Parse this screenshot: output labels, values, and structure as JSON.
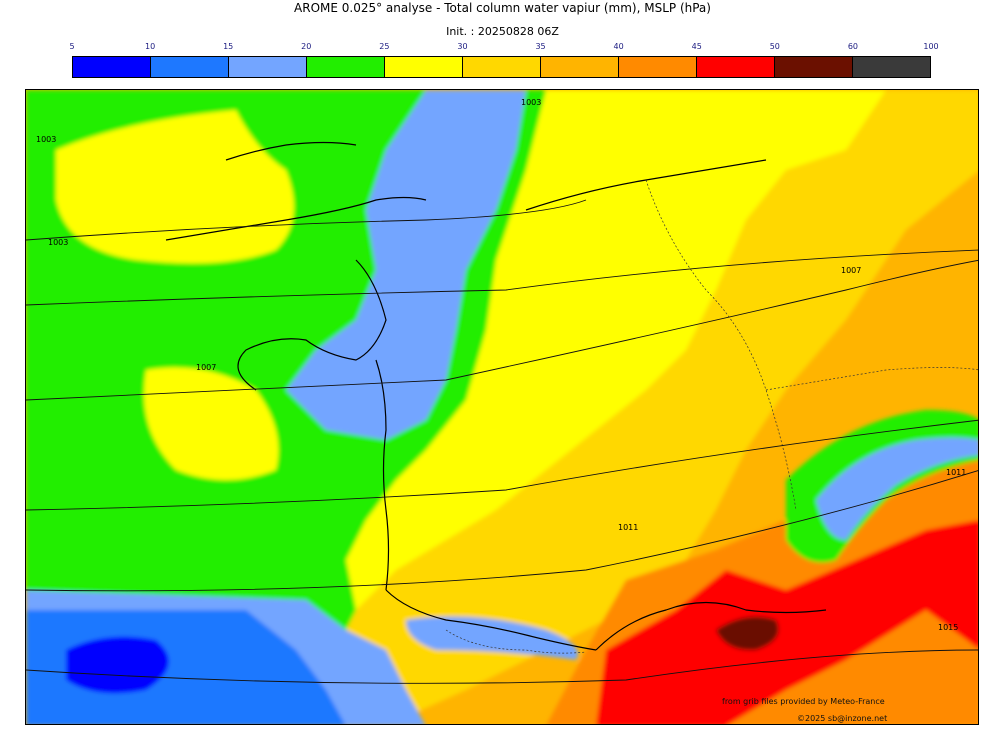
{
  "header": {
    "title": "AROME 0.025° analyse - Total column water vapiur (mm), MSLP (hPa)",
    "init": "Init. : 20250828 06Z"
  },
  "colorbar": {
    "ticks": [
      "5",
      "10",
      "15",
      "20",
      "25",
      "30",
      "35",
      "40",
      "45",
      "50",
      "60",
      "100"
    ],
    "colors": [
      "#0000ff",
      "#1e78ff",
      "#73a5ff",
      "#22ee00",
      "#ffff00",
      "#ffd800",
      "#ffb400",
      "#ff8a00",
      "#ff0000",
      "#6b1000",
      "#3a3a3a"
    ]
  },
  "isobar_labels": [
    "1003",
    "1003",
    "1007",
    "1007",
    "1011",
    "1011",
    "1003",
    "1015"
  ],
  "credits": {
    "line1": "from grib files provided by Meteo-France",
    "line2": "©2025 sb@inzone.net"
  }
}
